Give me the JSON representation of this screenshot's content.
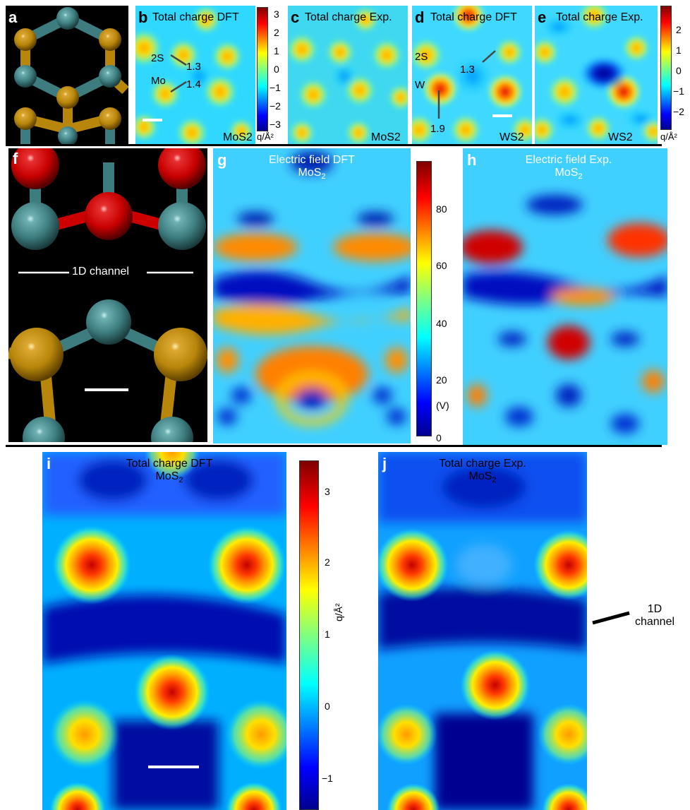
{
  "panels": {
    "a": {
      "label": "a"
    },
    "b": {
      "label": "b",
      "title": "Total charge DFT",
      "material": "MoS2",
      "ann_2s": "2S",
      "ann_mo": "Mo",
      "val1": "1.3",
      "val2": "1.4"
    },
    "c": {
      "label": "c",
      "title": "Total charge Exp.",
      "material": "MoS2"
    },
    "d": {
      "label": "d",
      "title": "Total charge DFT",
      "material": "WS2",
      "ann_2s": "2S",
      "ann_w": "W",
      "val1": "1.3",
      "val2": "1.9"
    },
    "e": {
      "label": "e",
      "title": "Total charge Exp.",
      "material": "WS2"
    },
    "f": {
      "label": "f",
      "channel": "1D channel"
    },
    "g": {
      "label": "g",
      "title": "Electric field DFT",
      "material": "MoS",
      "sub": "2"
    },
    "h": {
      "label": "h",
      "title": "Electric field Exp.",
      "material": "MoS",
      "sub": "2"
    },
    "i": {
      "label": "i",
      "title": "Total charge DFT",
      "material": "MoS",
      "sub": "2"
    },
    "j": {
      "label": "j",
      "title": "Total charge Exp.",
      "material": "MoS",
      "sub": "2",
      "channel1": "1D",
      "channel2": "channel"
    }
  },
  "colorbars": {
    "top_left": {
      "ticks": [
        "3",
        "2",
        "1",
        "0",
        "−1",
        "−2",
        "−3"
      ],
      "unit": "q/Å²"
    },
    "top_right": {
      "ticks": [
        "2",
        "1",
        "0",
        "−1",
        "−2"
      ],
      "unit": "q/Å²"
    },
    "middle": {
      "ticks": [
        "80",
        "60",
        "40",
        "20",
        "0"
      ],
      "unit": "(V)"
    },
    "bottom": {
      "ticks": [
        "3",
        "2",
        "1",
        "0",
        "−1"
      ],
      "unit": "q/Å²"
    }
  },
  "colors": {
    "jet_dark_blue": "#00008f",
    "jet_blue": "#0040ff",
    "jet_cyan": "#00e0ff",
    "jet_yellow": "#ffee00",
    "jet_orange": "#ff7f00",
    "jet_red": "#c00000",
    "mo_atom": "#3d7d80",
    "s_atom": "#b8860b",
    "o_atom": "#cc0000"
  }
}
